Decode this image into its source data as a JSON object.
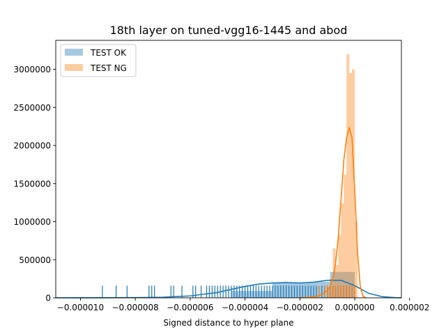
{
  "chart_data": {
    "type": "histogram",
    "title": "18th layer on tuned-vgg16-1445 and abod",
    "xlabel": "Signed distance to hyper plane",
    "ylabel": "",
    "xlim": [
      -1.09e-05,
      1.7e-06
    ],
    "ylim": [
      0,
      3380000
    ],
    "x_ticks": [
      -1e-05,
      -8e-06,
      -6e-06,
      -4e-06,
      -2e-06,
      0.0,
      2e-06
    ],
    "x_tick_labels": [
      "−0.000010",
      "−0.000008",
      "−0.000006",
      "−0.000004",
      "−0.000002",
      "0.000000",
      "0.000002"
    ],
    "y_ticks": [
      0,
      500000,
      1000000,
      1500000,
      2000000,
      2500000,
      3000000
    ],
    "y_tick_labels": [
      "0",
      "500000",
      "1000000",
      "1500000",
      "2000000",
      "2500000",
      "3000000"
    ],
    "legend_position": "upper-left",
    "series": [
      {
        "name": "TEST OK",
        "color": "#1f77b4",
        "bar_alpha": 0.4,
        "bins": [
          {
            "x0": -4.5e-06,
            "x1": -3e-06,
            "h": 90000
          },
          {
            "x0": -3e-06,
            "x1": -1.5e-06,
            "h": 200000
          },
          {
            "x0": -1.5e-06,
            "x1": -9e-07,
            "h": 210000
          },
          {
            "x0": -9e-07,
            "x1": 0.0,
            "h": 340000
          }
        ],
        "kde": [
          [
            -1.09e-05,
            0
          ],
          [
            -1e-05,
            500
          ],
          [
            -9e-06,
            1500
          ],
          [
            -8e-06,
            3000
          ],
          [
            -7e-06,
            8000
          ],
          [
            -6e-06,
            25000
          ],
          [
            -5e-06,
            70000
          ],
          [
            -4.5e-06,
            110000
          ],
          [
            -4e-06,
            150000
          ],
          [
            -3.5e-06,
            180000
          ],
          [
            -3e-06,
            195000
          ],
          [
            -2.5e-06,
            200000
          ],
          [
            -2e-06,
            195000
          ],
          [
            -1.5e-06,
            205000
          ],
          [
            -1e-06,
            230000
          ],
          [
            -5e-07,
            230000
          ],
          [
            0.0,
            160000
          ],
          [
            5e-07,
            60000
          ],
          [
            1e-06,
            15000
          ],
          [
            1.5e-06,
            2000
          ],
          [
            1.7e-06,
            500
          ]
        ],
        "rug": [
          -9.2e-06,
          -8.7e-06,
          -8.3e-06,
          -7.5e-06,
          -7.4e-06,
          -7.3e-06,
          -6.7e-06,
          -6.6e-06,
          -6.3e-06,
          -5.9e-06,
          -5.8e-06,
          -5.6e-06,
          -5.4e-06,
          -5.3e-06,
          -5.2e-06,
          -5.1e-06,
          -5e-06,
          -4.9e-06,
          -4.8e-06,
          -4.7e-06,
          -4.6e-06,
          -4.5e-06,
          -4.4e-06,
          -4.3e-06,
          -4.2e-06,
          -4.1e-06,
          -4e-06,
          -3.9e-06,
          -3.8e-06,
          -3.7e-06,
          -3.6e-06,
          -3.5e-06,
          -3.4e-06,
          -3.3e-06,
          -3.2e-06,
          -3.1e-06,
          -3e-06,
          -2.9e-06,
          -2.8e-06,
          -2.7e-06,
          -2.6e-06,
          -2.5e-06,
          -2.4e-06,
          -2.3e-06,
          -2.2e-06,
          -2.1e-06,
          -2e-06,
          -1.9e-06,
          -1.8e-06,
          -1.7e-06,
          -1.6e-06,
          -1.5e-06,
          -1.4e-06,
          -1.3e-06,
          -1.2e-06,
          -1.1e-06,
          -1e-06,
          -9e-07,
          -8e-07,
          -7e-07,
          -6e-07,
          -5e-07,
          -4e-07,
          -3e-07,
          -2e-07,
          -1e-07,
          0.0
        ],
        "rug_height": 160000
      },
      {
        "name": "TEST NG",
        "color": "#ff7f0e",
        "bar_alpha": 0.4,
        "bins": [
          {
            "x0": -1e-06,
            "x1": -9e-07,
            "h": 140000
          },
          {
            "x0": -9e-07,
            "x1": -8e-07,
            "h": 250000
          },
          {
            "x0": -8e-07,
            "x1": -7e-07,
            "h": 650000
          },
          {
            "x0": -7e-07,
            "x1": -6e-07,
            "h": 430000
          },
          {
            "x0": -6e-07,
            "x1": -5e-07,
            "h": 830000
          },
          {
            "x0": -5e-07,
            "x1": -4e-07,
            "h": 1240000
          },
          {
            "x0": -4e-07,
            "x1": -3e-07,
            "h": 1620000
          },
          {
            "x0": -3e-07,
            "x1": -2e-07,
            "h": 3200000
          },
          {
            "x0": -2e-07,
            "x1": -1e-07,
            "h": 2950000
          },
          {
            "x0": -1e-07,
            "x1": 0.0,
            "h": 3000000
          },
          {
            "x0": 0.0,
            "x1": 1e-07,
            "h": 1000000
          }
        ],
        "kde": [
          [
            -2e-06,
            0
          ],
          [
            -1.7e-06,
            5000
          ],
          [
            -1.4e-06,
            20000
          ],
          [
            -1.2e-06,
            40000
          ],
          [
            -1e-06,
            100000
          ],
          [
            -9e-07,
            150000
          ],
          [
            -8e-07,
            250000
          ],
          [
            -7e-07,
            450000
          ],
          [
            -6e-07,
            800000
          ],
          [
            -5e-07,
            1300000
          ],
          [
            -4e-07,
            1800000
          ],
          [
            -3e-07,
            2100000
          ],
          [
            -2e-07,
            2230000
          ],
          [
            -1e-07,
            2100000
          ],
          [
            0.0,
            1400000
          ],
          [
            1e-07,
            600000
          ],
          [
            2e-07,
            150000
          ],
          [
            3e-07,
            20000
          ],
          [
            4e-07,
            0
          ]
        ],
        "rug": [
          -1.3e-06,
          -1.1e-06,
          -1e-06,
          -9e-07,
          -8e-07,
          -7e-07,
          -6e-07,
          -5e-07,
          -4e-07,
          -3e-07,
          -2e-07,
          -1e-07,
          0.0
        ],
        "rug_height": 160000
      }
    ]
  }
}
